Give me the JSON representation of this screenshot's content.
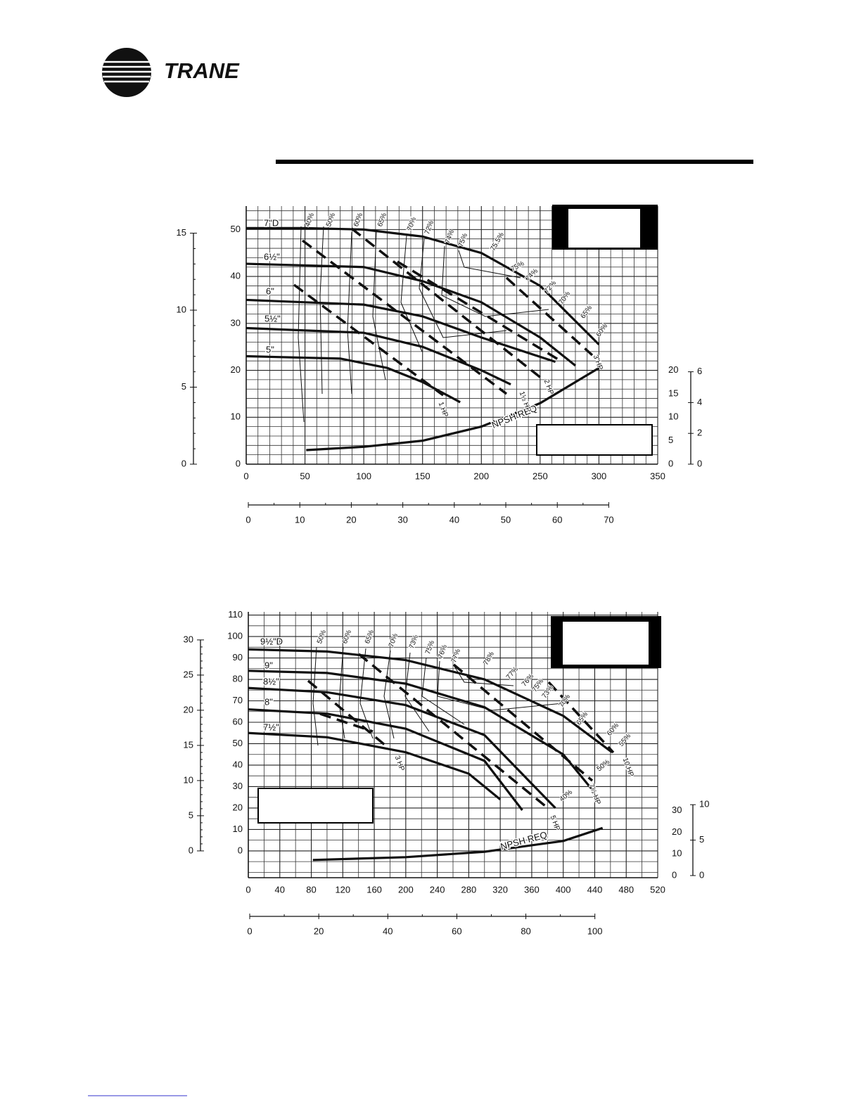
{
  "header": {
    "logo_text": "TRANE"
  },
  "chart_data": [
    {
      "type": "line",
      "xlim": [
        0,
        350
      ],
      "xticks": [
        0,
        50,
        100,
        150,
        200,
        250,
        300,
        350
      ],
      "ylim": [
        0,
        55
      ],
      "yticks": [
        0,
        10,
        20,
        30,
        40,
        50
      ],
      "y2lim": [
        0,
        55
      ],
      "y2ticks": [
        0,
        5,
        10,
        15,
        20
      ],
      "meters_ylim": [
        0,
        16.76
      ],
      "meters_yticks": [
        0,
        5,
        10,
        15
      ],
      "npsh_meters_ylim": [
        0,
        16.76
      ],
      "npsh_meters_yticks": [
        0,
        2,
        4,
        6
      ],
      "m3h_xlim": [
        0,
        79.5
      ],
      "m3h_xticks": [
        0,
        10,
        20,
        30,
        40,
        50,
        60,
        70
      ],
      "grid": true,
      "series": [
        {
          "name": "7\"D",
          "color": "#111",
          "x": [
            0,
            50,
            100,
            150,
            200,
            250,
            300
          ],
          "values": [
            50.3,
            50.3,
            50,
            48.5,
            45,
            38,
            25.5
          ]
        },
        {
          "name": "6½\"",
          "color": "#111",
          "x": [
            0,
            100,
            150,
            200,
            250,
            280
          ],
          "values": [
            42.7,
            42,
            39,
            34.5,
            27,
            21
          ]
        },
        {
          "name": "6\"",
          "color": "#111",
          "x": [
            0,
            100,
            150,
            200,
            263
          ],
          "values": [
            35,
            34,
            31.5,
            27,
            21.8
          ]
        },
        {
          "name": "5½\"",
          "color": "#111",
          "x": [
            0,
            100,
            150,
            200,
            225
          ],
          "values": [
            29,
            28,
            25,
            20,
            17
          ]
        },
        {
          "name": "5\"",
          "color": "#111",
          "x": [
            0,
            80,
            120,
            150,
            182
          ],
          "values": [
            23,
            22.5,
            20.5,
            17.5,
            13.2
          ]
        },
        {
          "name": "NPSH REQ",
          "color": "#111",
          "axis": "y2",
          "x": [
            51,
            100,
            150,
            200,
            250,
            300
          ],
          "values": [
            3,
            3.7,
            5,
            8,
            13,
            20.5
          ]
        }
      ],
      "annotations": [
        "40%",
        "50%",
        "60%",
        "65%",
        "70%",
        "72%",
        "74%",
        "75%",
        "75.5%",
        "75%",
        "74%",
        "72%",
        "70%",
        "65%",
        "60%",
        "3 HP",
        "2 HP",
        "1½ HP",
        "1 HP"
      ]
    },
    {
      "type": "line",
      "xlim": [
        0,
        520
      ],
      "xticks": [
        0,
        40,
        80,
        120,
        160,
        200,
        240,
        280,
        320,
        360,
        400,
        440,
        480,
        520
      ],
      "ylim": [
        -12.5,
        111.5
      ],
      "yticks": [
        0,
        10,
        20,
        30,
        40,
        50,
        60,
        70,
        80,
        90,
        100,
        110
      ],
      "y2lim": [
        -1,
        122
      ],
      "y2ticks": [
        0,
        10,
        20,
        30
      ],
      "meters_ylim": [
        -3.81,
        33.99
      ],
      "meters_yticks": [
        0,
        5,
        10,
        15,
        20,
        25,
        30
      ],
      "npsh_meters_ylim": [
        -0.3,
        37.2
      ],
      "npsh_meters_yticks": [
        0,
        5,
        10
      ],
      "m3h_xlim": [
        0,
        118.2
      ],
      "m3h_xticks": [
        0,
        20,
        40,
        60,
        80,
        100
      ],
      "grid": true,
      "series": [
        {
          "name": "9½\"D",
          "color": "#111",
          "x": [
            0,
            100,
            200,
            300,
            400,
            462
          ],
          "values": [
            94,
            93,
            89,
            80,
            63,
            46
          ]
        },
        {
          "name": "9\"",
          "color": "#111",
          "x": [
            0,
            100,
            200,
            300,
            400,
            438
          ],
          "values": [
            84,
            83,
            78,
            67,
            45,
            28
          ]
        },
        {
          "name": "8½\"",
          "color": "#111",
          "x": [
            0,
            100,
            200,
            300,
            390
          ],
          "values": [
            76,
            74,
            68,
            54,
            20
          ]
        },
        {
          "name": "8\"",
          "color": "#111",
          "x": [
            0,
            100,
            200,
            300,
            348
          ],
          "values": [
            66,
            64,
            57,
            42,
            19
          ]
        },
        {
          "name": "7½\"",
          "color": "#111",
          "x": [
            0,
            100,
            200,
            280,
            320
          ],
          "values": [
            55,
            53,
            46,
            36,
            24
          ]
        },
        {
          "name": "NPSH REQ",
          "color": "#111",
          "axis": "y2",
          "x": [
            82,
            200,
            300,
            400,
            450
          ],
          "values": [
            7.2,
            8.5,
            11,
            16,
            22
          ]
        }
      ],
      "annotations": [
        "50%",
        "60%",
        "65%",
        "70%",
        "73%",
        "75%",
        "76%",
        "77%",
        "78%",
        "77%",
        "76%",
        "75%",
        "73%",
        "70%",
        "65%",
        "60%",
        "55%",
        "50%",
        "40%",
        "10 HP",
        "7½ HP",
        "5 HP",
        "3 HP"
      ]
    }
  ]
}
